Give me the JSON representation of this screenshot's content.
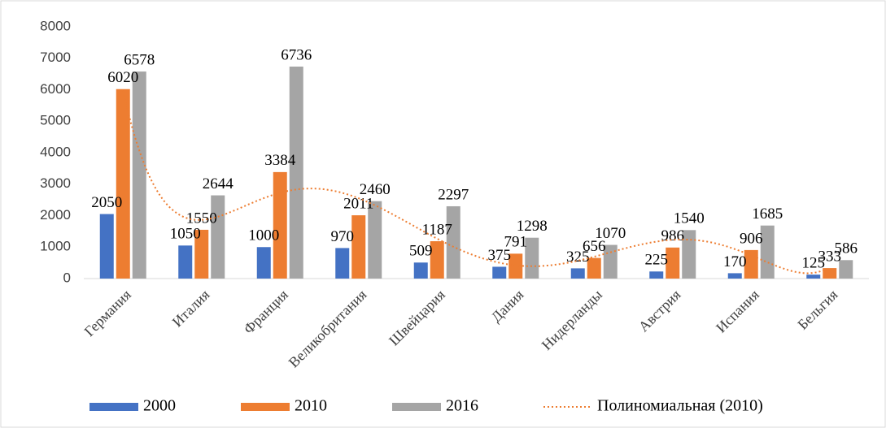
{
  "chart_data": {
    "type": "bar",
    "categories": [
      "Германия",
      "Италия",
      "Франция",
      "Великобритания",
      "Швейцария",
      "Дания",
      "Нидерланды",
      "Австрия",
      "Испания",
      "Бельгия"
    ],
    "series": [
      {
        "name": "2000",
        "color": "#4472c4",
        "values": [
          2050,
          1050,
          1000,
          970,
          509,
          375,
          325,
          225,
          170,
          125
        ]
      },
      {
        "name": "2010",
        "color": "#ed7d31",
        "values": [
          6020,
          1550,
          3384,
          2011,
          1187,
          791,
          656,
          986,
          906,
          333
        ]
      },
      {
        "name": "2016",
        "color": "#a5a5a5",
        "values": [
          6578,
          2644,
          6736,
          2460,
          2297,
          1298,
          1070,
          1540,
          1685,
          586
        ]
      }
    ],
    "trendline": {
      "name": "Полиномиальная (2010)",
      "series": 1,
      "degree": 6,
      "color": "#ed7d31"
    },
    "ylim": [
      0,
      8000
    ],
    "yticks": [
      0,
      1000,
      2000,
      3000,
      4000,
      5000,
      6000,
      7000,
      8000
    ],
    "grid": false,
    "legend": "bottom"
  }
}
